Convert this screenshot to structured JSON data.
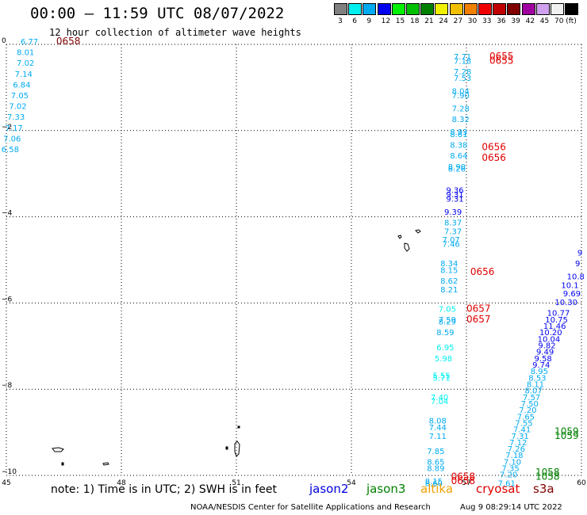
{
  "header": {
    "title": "00:00 – 11:59 UTC 08/07/2022",
    "subtitle": "12 hour collection of altimeter wave heights"
  },
  "legend": {
    "unit": "(ft)",
    "items": [
      {
        "label": "3",
        "color": "#808080"
      },
      {
        "label": "6",
        "color": "#00f0f0"
      },
      {
        "label": "9",
        "color": "#00aaf0"
      },
      {
        "label": "12",
        "color": "#0000f0"
      },
      {
        "label": "15",
        "color": "#00f000"
      },
      {
        "label": "18",
        "color": "#00c000"
      },
      {
        "label": "21",
        "color": "#008000"
      },
      {
        "label": "24",
        "color": "#f0f000"
      },
      {
        "label": "27",
        "color": "#f0c000"
      },
      {
        "label": "30",
        "color": "#f08000"
      },
      {
        "label": "33",
        "color": "#f00000"
      },
      {
        "label": "36",
        "color": "#c00000"
      },
      {
        "label": "39",
        "color": "#800000"
      },
      {
        "label": "42",
        "color": "#a000a0"
      },
      {
        "label": "45",
        "color": "#d0a0f0"
      },
      {
        "label": "70",
        "color": "#f0f0f0"
      },
      {
        "label": "(ft)",
        "color": "#000000"
      }
    ]
  },
  "map_data": {
    "lon_range": [
      45,
      60
    ],
    "lat_range": [
      -10,
      0
    ],
    "x_ticks": [
      "45",
      "48",
      "51",
      "54",
      "57",
      "60"
    ],
    "y_ticks": [
      "0",
      "−2",
      "−4",
      "−6",
      "−8",
      "−10"
    ],
    "grid": "dotted",
    "observations": [
      {
        "lon": 45.6,
        "lat": 0.0,
        "v": "6.77",
        "c": "#00aaf0"
      },
      {
        "lon": 45.5,
        "lat": -0.25,
        "v": "8.01",
        "c": "#00aaf0"
      },
      {
        "lon": 45.5,
        "lat": -0.5,
        "v": "7.02",
        "c": "#00aaf0"
      },
      {
        "lon": 45.45,
        "lat": -0.75,
        "v": "7.14",
        "c": "#00aaf0"
      },
      {
        "lon": 45.4,
        "lat": -1.0,
        "v": "6.84",
        "c": "#00aaf0"
      },
      {
        "lon": 45.35,
        "lat": -1.25,
        "v": "7.05",
        "c": "#00aaf0"
      },
      {
        "lon": 45.3,
        "lat": -1.5,
        "v": "7.02",
        "c": "#00aaf0"
      },
      {
        "lon": 45.25,
        "lat": -1.75,
        "v": "7.33",
        "c": "#00aaf0"
      },
      {
        "lon": 45.2,
        "lat": -2.0,
        "v": "7.17",
        "c": "#00aaf0"
      },
      {
        "lon": 45.15,
        "lat": -2.25,
        "v": "7.06",
        "c": "#00aaf0"
      },
      {
        "lon": 45.1,
        "lat": -2.5,
        "v": "6.58",
        "c": "#00aaf0"
      },
      {
        "lon": 56.9,
        "lat": -0.35,
        "v": "7.71",
        "c": "#00aaf0"
      },
      {
        "lon": 56.9,
        "lat": -0.45,
        "v": "7.18",
        "c": "#00aaf0"
      },
      {
        "lon": 56.9,
        "lat": -0.7,
        "v": "7.28",
        "c": "#00aaf0"
      },
      {
        "lon": 56.9,
        "lat": -0.85,
        "v": "7.53",
        "c": "#00aaf0"
      },
      {
        "lon": 56.85,
        "lat": -1.15,
        "v": "8.04",
        "c": "#00aaf0"
      },
      {
        "lon": 56.85,
        "lat": -1.25,
        "v": "7.90",
        "c": "#00aaf0"
      },
      {
        "lon": 56.85,
        "lat": -1.55,
        "v": "7.28",
        "c": "#00aaf0"
      },
      {
        "lon": 56.85,
        "lat": -1.8,
        "v": "8.32",
        "c": "#00aaf0"
      },
      {
        "lon": 56.8,
        "lat": -2.1,
        "v": "8.93",
        "c": "#00aaf0"
      },
      {
        "lon": 56.8,
        "lat": -2.15,
        "v": "8.61",
        "c": "#00aaf0"
      },
      {
        "lon": 56.8,
        "lat": -2.4,
        "v": "8.38",
        "c": "#00aaf0"
      },
      {
        "lon": 56.8,
        "lat": -2.65,
        "v": "8.64",
        "c": "#00aaf0"
      },
      {
        "lon": 56.75,
        "lat": -2.9,
        "v": "8.90",
        "c": "#00aaf0"
      },
      {
        "lon": 56.75,
        "lat": -2.95,
        "v": "8.26",
        "c": "#00aaf0"
      },
      {
        "lon": 56.7,
        "lat": -3.45,
        "v": "9.36",
        "c": "#0000f0"
      },
      {
        "lon": 56.7,
        "lat": -3.55,
        "v": "9.31",
        "c": "#0000f0"
      },
      {
        "lon": 56.7,
        "lat": -3.65,
        "v": "9.31",
        "c": "#0000f0"
      },
      {
        "lon": 56.65,
        "lat": -3.95,
        "v": "9.39",
        "c": "#0000f0"
      },
      {
        "lon": 56.65,
        "lat": -4.2,
        "v": "8.37",
        "c": "#00aaf0"
      },
      {
        "lon": 56.65,
        "lat": -4.4,
        "v": "7.37",
        "c": "#00aaf0"
      },
      {
        "lon": 56.6,
        "lat": -4.6,
        "v": "7.07",
        "c": "#00aaf0"
      },
      {
        "lon": 56.6,
        "lat": -4.7,
        "v": "7.46",
        "c": "#00aaf0"
      },
      {
        "lon": 56.55,
        "lat": -5.15,
        "v": "8.34",
        "c": "#00aaf0"
      },
      {
        "lon": 56.55,
        "lat": -5.3,
        "v": "8.15",
        "c": "#00aaf0"
      },
      {
        "lon": 56.55,
        "lat": -5.55,
        "v": "8.62",
        "c": "#00aaf0"
      },
      {
        "lon": 56.55,
        "lat": -5.75,
        "v": "8.21",
        "c": "#00aaf0"
      },
      {
        "lon": 56.5,
        "lat": -6.2,
        "v": "7.05",
        "c": "#00f0f0"
      },
      {
        "lon": 56.5,
        "lat": -6.45,
        "v": "7.59",
        "c": "#00aaf0"
      },
      {
        "lon": 56.5,
        "lat": -6.5,
        "v": "8.29",
        "c": "#00aaf0"
      },
      {
        "lon": 56.45,
        "lat": -6.75,
        "v": "8.59",
        "c": "#00aaf0"
      },
      {
        "lon": 56.45,
        "lat": -7.1,
        "v": "6.95",
        "c": "#00f0f0"
      },
      {
        "lon": 56.4,
        "lat": -7.35,
        "v": "5.98",
        "c": "#00f0f0"
      },
      {
        "lon": 56.35,
        "lat": -7.75,
        "v": "5.55",
        "c": "#00f0f0"
      },
      {
        "lon": 56.35,
        "lat": -7.8,
        "v": "5.71",
        "c": "#00f0f0"
      },
      {
        "lon": 56.3,
        "lat": -8.25,
        "v": "7.40",
        "c": "#00f0f0"
      },
      {
        "lon": 56.3,
        "lat": -8.35,
        "v": "7.04",
        "c": "#00f0f0"
      },
      {
        "lon": 56.25,
        "lat": -8.8,
        "v": "8.08",
        "c": "#00aaf0"
      },
      {
        "lon": 56.25,
        "lat": -8.95,
        "v": "7.44",
        "c": "#00aaf0"
      },
      {
        "lon": 56.25,
        "lat": -9.15,
        "v": "7.11",
        "c": "#00aaf0"
      },
      {
        "lon": 56.2,
        "lat": -9.5,
        "v": "7.85",
        "c": "#00aaf0"
      },
      {
        "lon": 56.2,
        "lat": -9.75,
        "v": "8.65",
        "c": "#00aaf0"
      },
      {
        "lon": 56.2,
        "lat": -9.9,
        "v": "8.89",
        "c": "#00aaf0"
      },
      {
        "lon": 56.15,
        "lat": -10.2,
        "v": "8.15",
        "c": "#00aaf0"
      },
      {
        "lon": 56.15,
        "lat": -10.25,
        "v": "8.60",
        "c": "#00aaf0"
      },
      {
        "lon": 60.0,
        "lat": -4.9,
        "v": "9",
        "c": "#0000f0"
      },
      {
        "lon": 59.9,
        "lat": -5.15,
        "v": "9",
        "c": "#0000f0"
      },
      {
        "lon": 59.85,
        "lat": -5.45,
        "v": "10.8",
        "c": "#0000f0"
      },
      {
        "lon": 59.7,
        "lat": -5.65,
        "v": "10.1",
        "c": "#0000f0"
      },
      {
        "lon": 59.75,
        "lat": -5.85,
        "v": "9.69",
        "c": "#0000f0"
      },
      {
        "lon": 59.6,
        "lat": -6.05,
        "v": "10.30",
        "c": "#0000f0"
      },
      {
        "lon": 59.4,
        "lat": -6.3,
        "v": "10.77",
        "c": "#0000f0"
      },
      {
        "lon": 59.35,
        "lat": -6.45,
        "v": "10.75",
        "c": "#0000f0"
      },
      {
        "lon": 59.3,
        "lat": -6.6,
        "v": "11.46",
        "c": "#0000f0"
      },
      {
        "lon": 59.2,
        "lat": -6.75,
        "v": "10.20",
        "c": "#0000f0"
      },
      {
        "lon": 59.15,
        "lat": -6.9,
        "v": "10.04",
        "c": "#0000f0"
      },
      {
        "lon": 59.1,
        "lat": -7.05,
        "v": "9.82",
        "c": "#0000f0"
      },
      {
        "lon": 59.05,
        "lat": -7.2,
        "v": "9.49",
        "c": "#0000f0"
      },
      {
        "lon": 59.0,
        "lat": -7.35,
        "v": "9.58",
        "c": "#0000f0"
      },
      {
        "lon": 58.95,
        "lat": -7.5,
        "v": "9.74",
        "c": "#0000f0"
      },
      {
        "lon": 58.9,
        "lat": -7.65,
        "v": "8.95",
        "c": "#00aaf0"
      },
      {
        "lon": 58.85,
        "lat": -7.8,
        "v": "8.53",
        "c": "#00aaf0"
      },
      {
        "lon": 58.8,
        "lat": -7.95,
        "v": "8.11",
        "c": "#00aaf0"
      },
      {
        "lon": 58.75,
        "lat": -8.1,
        "v": "8.07",
        "c": "#00aaf0"
      },
      {
        "lon": 58.7,
        "lat": -8.25,
        "v": "7.57",
        "c": "#00aaf0"
      },
      {
        "lon": 58.65,
        "lat": -8.4,
        "v": "7.50",
        "c": "#00aaf0"
      },
      {
        "lon": 58.6,
        "lat": -8.55,
        "v": "7.20",
        "c": "#00aaf0"
      },
      {
        "lon": 58.55,
        "lat": -8.7,
        "v": "7.65",
        "c": "#00aaf0"
      },
      {
        "lon": 58.5,
        "lat": -8.85,
        "v": "7.55",
        "c": "#00aaf0"
      },
      {
        "lon": 58.45,
        "lat": -9.0,
        "v": "7.41",
        "c": "#00aaf0"
      },
      {
        "lon": 58.4,
        "lat": -9.15,
        "v": "7.31",
        "c": "#00aaf0"
      },
      {
        "lon": 58.35,
        "lat": -9.3,
        "v": "7.12",
        "c": "#00aaf0"
      },
      {
        "lon": 58.3,
        "lat": -9.45,
        "v": "7.26",
        "c": "#00aaf0"
      },
      {
        "lon": 58.25,
        "lat": -9.6,
        "v": "7.18",
        "c": "#00aaf0"
      },
      {
        "lon": 58.2,
        "lat": -9.75,
        "v": "7.10",
        "c": "#00aaf0"
      },
      {
        "lon": 58.15,
        "lat": -9.9,
        "v": "7.35",
        "c": "#00aaf0"
      },
      {
        "lon": 58.1,
        "lat": -10.05,
        "v": "7.20",
        "c": "#00aaf0"
      },
      {
        "lon": 58.05,
        "lat": -10.25,
        "v": "7.61",
        "c": "#00aaf0"
      }
    ],
    "time_labels": [
      {
        "lon": 46.3,
        "lat": 0.0,
        "v": "0658",
        "c": "#800000"
      },
      {
        "lon": 57.6,
        "lat": -0.35,
        "v": "0655",
        "c": "#e00000"
      },
      {
        "lon": 57.6,
        "lat": -0.45,
        "v": "0655",
        "c": "#e00000"
      },
      {
        "lon": 57.4,
        "lat": -2.45,
        "v": "0656",
        "c": "#e00000"
      },
      {
        "lon": 57.4,
        "lat": -2.7,
        "v": "0656",
        "c": "#e00000"
      },
      {
        "lon": 57.1,
        "lat": -5.35,
        "v": "0656",
        "c": "#e00000"
      },
      {
        "lon": 57.0,
        "lat": -6.2,
        "v": "0657",
        "c": "#e00000"
      },
      {
        "lon": 57.0,
        "lat": -6.45,
        "v": "0657",
        "c": "#e00000"
      },
      {
        "lon": 56.6,
        "lat": -10.1,
        "v": "0658",
        "c": "#e00000"
      },
      {
        "lon": 56.6,
        "lat": -10.2,
        "v": "0658",
        "c": "#e00000"
      },
      {
        "lon": 59.3,
        "lat": -9.05,
        "v": "1059",
        "c": "#008000"
      },
      {
        "lon": 59.3,
        "lat": -9.15,
        "v": "1059",
        "c": "#008000"
      },
      {
        "lon": 58.8,
        "lat": -10.0,
        "v": "1058",
        "c": "#008000"
      },
      {
        "lon": 58.8,
        "lat": -10.1,
        "v": "1058",
        "c": "#008000"
      }
    ]
  },
  "notes": {
    "text": "note:  1) Time is in UTC; 2) SWH is in feet",
    "satellites": [
      {
        "name": "jason2",
        "color": "#0000e0"
      },
      {
        "name": "jason3",
        "color": "#008000"
      },
      {
        "name": "altika",
        "color": "#f0a000"
      },
      {
        "name": "cryosat",
        "color": "#e00000"
      },
      {
        "name": "s3a",
        "color": "#800000"
      }
    ]
  },
  "footer": {
    "left": "NOAA/NESDIS Center for Satellite Applications and Research",
    "right": "Aug  9 08:29:14 UTC 2022"
  }
}
